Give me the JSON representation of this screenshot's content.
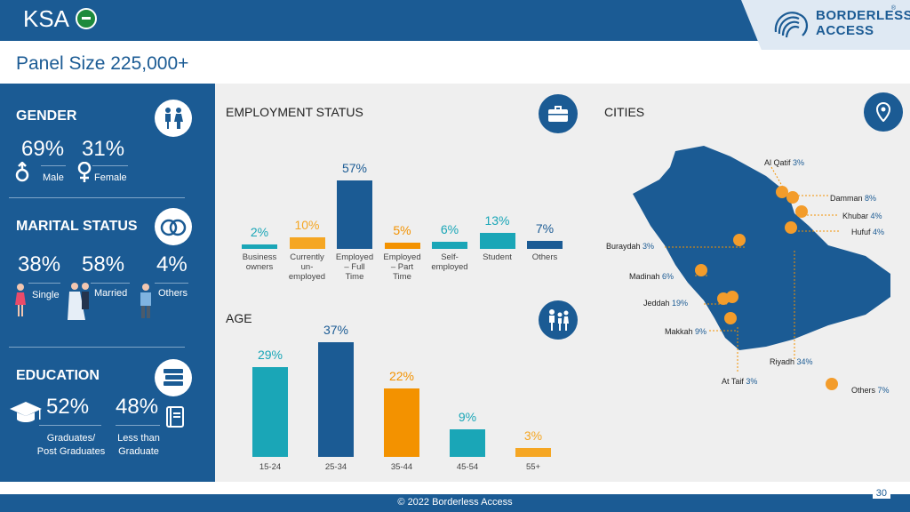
{
  "header": {
    "title": "KSA",
    "logo_line1": "BORDERLESS",
    "logo_line2": "ACCESS",
    "logo_reg": "®"
  },
  "panel_size": "Panel Size 225,000+",
  "gender": {
    "title": "GENDER",
    "male_pct": "69%",
    "female_pct": "31%",
    "male_label": "Male",
    "female_label": "Female"
  },
  "marital": {
    "title": "MARITAL STATUS",
    "single_pct": "38%",
    "married_pct": "58%",
    "others_pct": "4%",
    "single_label": "Single",
    "married_label": "Married",
    "others_label": "Others"
  },
  "education": {
    "title": "EDUCATION",
    "grad_pct": "52%",
    "less_pct": "48%",
    "grad_label_1": "Graduates/",
    "grad_label_2": "Post Graduates",
    "less_label_1": "Less than",
    "less_label_2": "Graduate"
  },
  "employment": {
    "title": "EMPLOYMENT STATUS",
    "bars": [
      {
        "value": 2,
        "label": "2%",
        "color": "#1aa6b7",
        "cat": [
          "Business",
          "owners"
        ]
      },
      {
        "value": 10,
        "label": "10%",
        "color": "#f5a623",
        "cat": [
          "Currently",
          "un-",
          "employed"
        ]
      },
      {
        "value": 57,
        "label": "57%",
        "color": "#1b5b94",
        "cat": [
          "Employed",
          "– Full",
          "Time"
        ]
      },
      {
        "value": 5,
        "label": "5%",
        "color": "#f39200",
        "cat": [
          "Employed",
          "– Part",
          "Time"
        ]
      },
      {
        "value": 6,
        "label": "6%",
        "color": "#1aa6b7",
        "cat": [
          "Self-",
          "employed"
        ]
      },
      {
        "value": 13,
        "label": "13%",
        "color": "#1aa6b7",
        "cat": [
          "Student"
        ]
      },
      {
        "value": 7,
        "label": "7%",
        "color": "#1b5b94",
        "cat": [
          "Others"
        ]
      }
    ]
  },
  "age": {
    "title": "AGE",
    "bars": [
      {
        "value": 29,
        "label": "29%",
        "color": "#1aa6b7",
        "cat": "15-24"
      },
      {
        "value": 37,
        "label": "37%",
        "color": "#1b5b94",
        "cat": "25-34"
      },
      {
        "value": 22,
        "label": "22%",
        "color": "#f39200",
        "cat": "35-44"
      },
      {
        "value": 9,
        "label": "9%",
        "color": "#1aa6b7",
        "cat": "45-54"
      },
      {
        "value": 3,
        "label": "3%",
        "color": "#f5a623",
        "cat": "55+"
      }
    ]
  },
  "cities": {
    "title": "CITIES",
    "items": [
      {
        "name": "Al Qatif",
        "pct": "3%"
      },
      {
        "name": "Damman",
        "pct": "8%"
      },
      {
        "name": "Khubar",
        "pct": "4%"
      },
      {
        "name": "Hufuf",
        "pct": "4%"
      },
      {
        "name": "Buraydah",
        "pct": "3%"
      },
      {
        "name": "Madinah",
        "pct": "6%"
      },
      {
        "name": "Jeddah",
        "pct": "19%"
      },
      {
        "name": "Makkah",
        "pct": "9%"
      },
      {
        "name": "Riyadh",
        "pct": "34%"
      },
      {
        "name": "At Taif",
        "pct": "3%"
      },
      {
        "name": "Others",
        "pct": "7%"
      }
    ]
  },
  "chart_data": [
    {
      "type": "bar",
      "title": "EMPLOYMENT STATUS",
      "categories": [
        "Business owners",
        "Currently un-employed",
        "Employed – Full Time",
        "Employed – Part Time",
        "Self-employed",
        "Student",
        "Others"
      ],
      "values": [
        2,
        10,
        57,
        5,
        6,
        13,
        7
      ]
    },
    {
      "type": "bar",
      "title": "AGE",
      "categories": [
        "15-24",
        "25-34",
        "35-44",
        "45-54",
        "55+"
      ],
      "values": [
        29,
        37,
        22,
        9,
        3
      ]
    }
  ],
  "footer": {
    "text": "© 2022 Borderless Access",
    "page": "30"
  }
}
